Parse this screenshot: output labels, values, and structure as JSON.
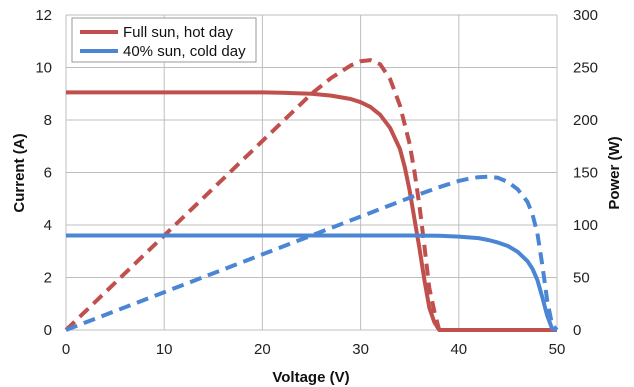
{
  "chart_data": {
    "type": "line",
    "xlabel": "Voltage (V)",
    "ylabel_left": "Current (A)",
    "ylabel_right": "Power (W)",
    "xlim": [
      0,
      50
    ],
    "ylim_left": [
      0,
      12
    ],
    "ylim_right": [
      0,
      300
    ],
    "x_ticks": [
      "0",
      "10",
      "20",
      "30",
      "40",
      "50"
    ],
    "y_left_ticks": [
      "0",
      "2",
      "4",
      "6",
      "8",
      "10",
      "12"
    ],
    "y_right_ticks": [
      "0",
      "50",
      "100",
      "150",
      "200",
      "250",
      "300"
    ],
    "grid": true,
    "legend_position": "top-left",
    "legend": [
      "Full sun, hot day",
      "40% sun, cold day"
    ],
    "series": [
      {
        "name": "Full sun, hot day",
        "kind": "current",
        "axis": "left",
        "color": "#c0504d",
        "style": "solid",
        "x": [
          0,
          10,
          20,
          22,
          25,
          27,
          29,
          30,
          31,
          32,
          33,
          34,
          34.5,
          35,
          35.5,
          36,
          36.5,
          37,
          37.5,
          38,
          40,
          45,
          50
        ],
        "y": [
          9.05,
          9.05,
          9.05,
          9.04,
          9.0,
          8.93,
          8.8,
          8.68,
          8.5,
          8.2,
          7.7,
          6.9,
          6.2,
          5.3,
          4.2,
          3.1,
          1.9,
          0.85,
          0.3,
          0,
          0,
          0,
          0
        ]
      },
      {
        "name": "Full sun, hot day",
        "kind": "power",
        "axis": "right",
        "color": "#c0504d",
        "style": "dashed",
        "x": [
          0,
          5,
          10,
          15,
          20,
          25,
          27,
          29,
          30,
          31,
          32,
          33,
          34,
          35,
          35.5,
          36,
          36.5,
          37,
          37.5,
          38
        ],
        "y": [
          0,
          45,
          90,
          135,
          180,
          225,
          240,
          252,
          256,
          257,
          253,
          239,
          214,
          177,
          150,
          118,
          80,
          40,
          18,
          0
        ]
      },
      {
        "name": "40% sun, cold day",
        "kind": "current",
        "axis": "left",
        "color": "#4a86d4",
        "style": "solid",
        "x": [
          0,
          10,
          20,
          30,
          35,
          38,
          40,
          42,
          43,
          44,
          45,
          46,
          47,
          47.5,
          48,
          48.5,
          49,
          49.5,
          50
        ],
        "y": [
          3.6,
          3.6,
          3.6,
          3.6,
          3.6,
          3.59,
          3.56,
          3.5,
          3.43,
          3.33,
          3.2,
          2.98,
          2.62,
          2.33,
          1.9,
          1.25,
          0.55,
          0.05,
          0
        ]
      },
      {
        "name": "40% sun, cold day",
        "kind": "power",
        "axis": "right",
        "color": "#4a86d4",
        "style": "dashed",
        "x": [
          0,
          10,
          20,
          30,
          35,
          38,
          40,
          41,
          42,
          43,
          44,
          45,
          46,
          47,
          47.5,
          48,
          48.5,
          49,
          49.5,
          50
        ],
        "y": [
          0,
          36,
          72,
          108,
          126,
          136,
          142,
          144,
          145.5,
          146,
          145,
          141,
          134,
          122,
          110,
          92,
          62,
          28,
          5,
          0
        ]
      }
    ]
  }
}
